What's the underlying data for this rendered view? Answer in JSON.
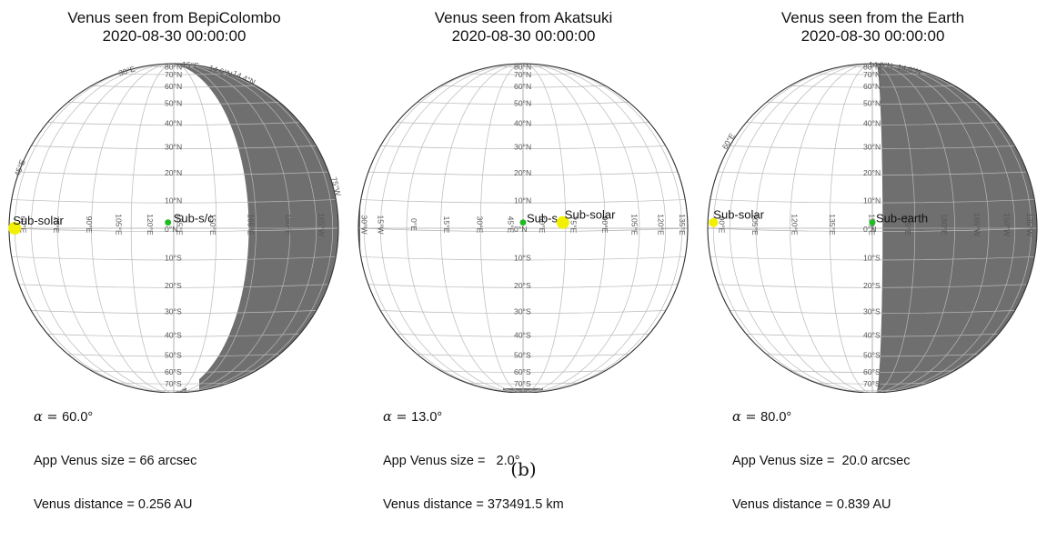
{
  "panels": [
    {
      "title": "Venus seen from BepiColombo",
      "datetime": "2020-08-30 00:00:00",
      "alpha_label": "α = ",
      "alpha_value": "60.0°",
      "size_line": "App Venus size = 66 arcsec",
      "distance_line": "Venus distance = 0.256 AU",
      "lat_labels": [
        "80°N",
        "70°N",
        "60°N",
        "50°N",
        "40°N",
        "30°N",
        "20°N",
        "10°N",
        "0°N",
        "10°S",
        "20°S",
        "30°S",
        "40°S",
        "50°S",
        "60°S",
        "70°S"
      ],
      "lon_labels": [
        "60°E",
        "75°E",
        "90°E",
        "105°E",
        "120°E",
        "135°E",
        "150°E",
        "165°E",
        "180°E",
        "165°W"
      ],
      "limb_labels": [
        "15°E",
        "30°E",
        "45°E",
        "14.6°N",
        "14.4°N",
        "75°W"
      ],
      "points": [
        {
          "label": "Sub-solar",
          "color": "#f2f000"
        },
        {
          "label": "Sub-s/c",
          "color": "#22bb22"
        }
      ]
    },
    {
      "title": "Venus seen from Akatsuki",
      "datetime": "2020-08-30 00:00:00",
      "alpha_label": "α = ",
      "alpha_value": "13.0°",
      "size_line": "App Venus size =   2.0°",
      "distance_line": "Venus distance = 373491.5 km",
      "lat_labels": [
        "80°N",
        "70°N",
        "60°N",
        "50°N",
        "40°N",
        "30°N",
        "20°N",
        "10°N",
        "0°N",
        "10°S",
        "20°S",
        "30°S",
        "40°S",
        "50°S",
        "60°S",
        "70°S"
      ],
      "lon_labels": [
        "30°W",
        "15°W",
        "0°E",
        "15°E",
        "30°E",
        "45°E",
        "60°E",
        "75°E",
        "90°E",
        "105°E",
        "120°E",
        "135°E"
      ],
      "limb_labels": [],
      "points": [
        {
          "label": "Sub-s",
          "color": "#22bb22"
        },
        {
          "label": "Sub-solar",
          "color": "#f2f000"
        }
      ]
    },
    {
      "title": "Venus seen from the Earth",
      "datetime": "2020-08-30 00:00:00",
      "alpha_label": "α = ",
      "alpha_value": "80.0°",
      "size_line": "App Venus size =  20.0 arcsec",
      "distance_line": "Venus distance = 0.839 AU",
      "lat_labels": [
        "80°N",
        "70°N",
        "60°N",
        "50°N",
        "40°N",
        "30°N",
        "20°N",
        "10°N",
        "0°N",
        "10°S",
        "20°S",
        "30°S",
        "40°S",
        "50°S",
        "60°S",
        "70°S"
      ],
      "lon_labels": [
        "90°E",
        "105°E",
        "120°E",
        "135°E",
        "150°E",
        "165°E",
        "180°E",
        "165°W",
        "150°W",
        "135°W"
      ],
      "limb_labels": [
        "60°E",
        "14.0°N",
        "14.0°N"
      ],
      "points": [
        {
          "label": "Sub-solar",
          "color": "#f2f000"
        },
        {
          "label": "Sub-earth",
          "color": "#22bb22"
        }
      ]
    }
  ],
  "caption": "(b)",
  "colors": {
    "night_side": "#6f6f6f",
    "grid": "#b8b8b8",
    "limb": "#333333"
  }
}
